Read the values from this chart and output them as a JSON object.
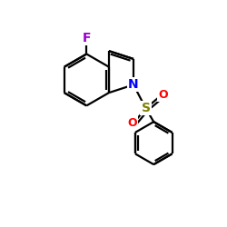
{
  "background_color": "#ffffff",
  "atom_colors": {
    "F": "#9900cc",
    "N": "#0000ff",
    "S": "#808000",
    "O": "#ff0000",
    "C": "#000000"
  },
  "bond_color": "#000000",
  "bond_width": 1.6,
  "figsize": [
    2.5,
    2.5
  ],
  "dpi": 100,
  "font_size": 9,
  "xlim": [
    0,
    10
  ],
  "ylim": [
    0,
    10
  ]
}
